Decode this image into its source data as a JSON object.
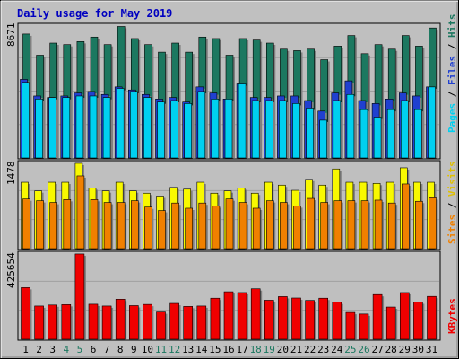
{
  "title": "Daily usage for May 2019",
  "colors": {
    "frame": "#c0c0c0",
    "plot_bg": "#bfbfbf",
    "title": "#0000c0",
    "hits": "#1c7860",
    "files": "#2040d0",
    "pages": "#00d0f0",
    "visits": "#f8f800",
    "sites": "#f08000",
    "kbytes": "#f00000",
    "weekend_day": "#1c7860",
    "weekday_day": "#000000"
  },
  "y_max_labels": {
    "hits": "8671",
    "visits": "1478",
    "kbytes": "425654"
  },
  "right_labels": {
    "pages": "Pages",
    "files": "Files",
    "hits": "Hits",
    "sites": "Sites",
    "visits": "Visits",
    "kbytes": "KBytes",
    "sep": " / "
  },
  "chart_data": {
    "type": "bar",
    "title": "Daily usage for May 2019",
    "categories": [
      "1",
      "2",
      "3",
      "4",
      "5",
      "6",
      "7",
      "8",
      "9",
      "10",
      "11",
      "12",
      "13",
      "14",
      "15",
      "16",
      "17",
      "18",
      "19",
      "20",
      "21",
      "22",
      "23",
      "24",
      "25",
      "26",
      "27",
      "28",
      "29",
      "30",
      "31"
    ],
    "weekend_days": [
      "4",
      "5",
      "11",
      "12",
      "18",
      "19",
      "25",
      "26"
    ],
    "panels": [
      {
        "name": "hits",
        "ymax": 8671,
        "series": [
          {
            "name": "Hits",
            "values": [
              8200,
              6800,
              7600,
              7500,
              7700,
              8000,
              7500,
              8700,
              7900,
              7500,
              7000,
              7600,
              7000,
              8000,
              7900,
              6800,
              7900,
              7800,
              7600,
              7200,
              7100,
              7200,
              6500,
              7400,
              8100,
              6900,
              7500,
              7200,
              8100,
              7400,
              8600
            ]
          },
          {
            "name": "Files",
            "values": [
              5200,
              4100,
              4000,
              4100,
              4300,
              4400,
              4200,
              4700,
              4500,
              4200,
              3900,
              4000,
              3700,
              4700,
              4300,
              3900,
              4900,
              4000,
              4000,
              4100,
              4100,
              3800,
              3100,
              4300,
              5100,
              3800,
              3600,
              3900,
              4300,
              4100,
              4700
            ]
          },
          {
            "name": "Pages",
            "values": [
              5000,
              3900,
              4000,
              4000,
              4100,
              4100,
              4000,
              4600,
              4400,
              4000,
              3700,
              3800,
              3600,
              4400,
              3900,
              3900,
              4900,
              3800,
              3800,
              3800,
              3600,
              3300,
              2500,
              3800,
              4200,
              3200,
              2700,
              3200,
              3800,
              3200,
              4700
            ]
          }
        ]
      },
      {
        "name": "visits",
        "ymax": 1478,
        "series": [
          {
            "name": "Visits",
            "values": [
              1150,
              1000,
              1150,
              1150,
              1478,
              1050,
              1000,
              1150,
              1000,
              960,
              910,
              1060,
              1030,
              1150,
              960,
              1000,
              1050,
              960,
              1150,
              1100,
              1010,
              1200,
              1100,
              1380,
              1150,
              1150,
              1130,
              1150,
              1400,
              1150,
              1150
            ]
          },
          {
            "name": "Sites",
            "values": [
              860,
              830,
              800,
              850,
              1260,
              850,
              800,
              800,
              830,
              720,
              660,
              790,
              700,
              790,
              740,
              860,
              800,
              700,
              830,
              800,
              740,
              870,
              800,
              830,
              830,
              830,
              840,
              790,
              1120,
              820,
              880
            ]
          }
        ]
      },
      {
        "name": "kbytes",
        "ymax": 425654,
        "series": [
          {
            "name": "KBytes",
            "values": [
              258000,
              166000,
              171000,
              173000,
              425654,
              175000,
              166000,
              200000,
              168000,
              174000,
              136000,
              179000,
              164000,
              166000,
              205000,
              237000,
              233000,
              252000,
              195000,
              213000,
              206000,
              194000,
              205000,
              185000,
              134000,
              126000,
              223000,
              161000,
              233000,
              186000,
              214000
            ]
          }
        ]
      }
    ]
  }
}
